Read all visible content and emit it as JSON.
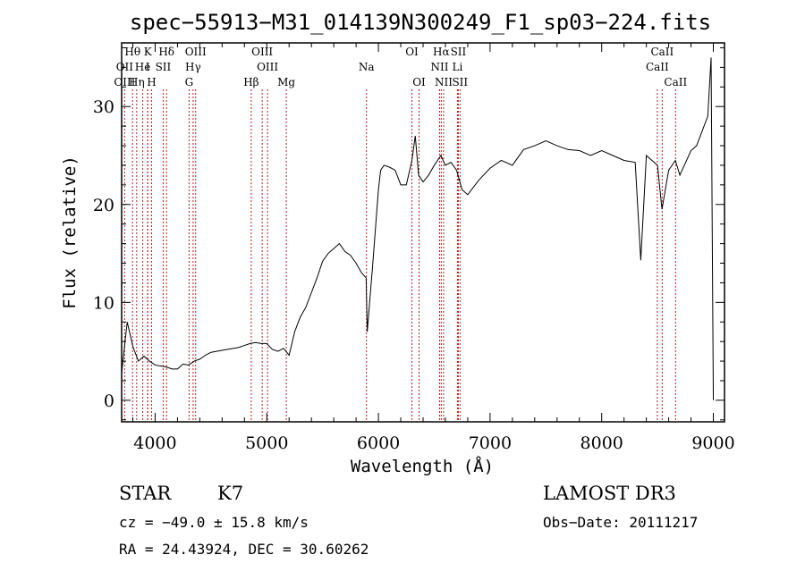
{
  "chart_data": {
    "type": "line",
    "title": "spec−55913−M31_014139N300249_F1_sp03−224.fits",
    "xlabel": "Wavelength (Å)",
    "ylabel": "Flux (relative)",
    "xlim": [
      3700,
      9100
    ],
    "ylim": [
      -2.2,
      36.5
    ],
    "xticks": [
      4000,
      5000,
      6000,
      7000,
      8000,
      9000
    ],
    "yticks": [
      0,
      10,
      20,
      30
    ],
    "series": [
      {
        "x": [
          3700,
          3750,
          3800,
          3850,
          3900,
          3950,
          4000,
          4050,
          4100,
          4150,
          4200,
          4250,
          4300,
          4350,
          4400,
          4450,
          4500,
          4550,
          4600,
          4650,
          4700,
          4750,
          4800,
          4850,
          4900,
          4950,
          5000,
          5050,
          5100,
          5150,
          5200,
          5250,
          5300,
          5350,
          5400,
          5450,
          5500,
          5550,
          5600,
          5650,
          5700,
          5750,
          5800,
          5850,
          5890,
          5900,
          5950,
          6000,
          6020,
          6050,
          6100,
          6150,
          6200,
          6250,
          6300,
          6330,
          6360,
          6400,
          6450,
          6500,
          6560,
          6600,
          6650,
          6700,
          6750,
          6800,
          6900,
          7000,
          7100,
          7200,
          7300,
          7400,
          7500,
          7600,
          7700,
          7800,
          7900,
          8000,
          8100,
          8200,
          8300,
          8350,
          8400,
          8500,
          8540,
          8600,
          8660,
          8700,
          8800,
          8850,
          8900,
          8950,
          8980,
          9000
        ],
        "y": [
          2.8,
          8.0,
          5.5,
          4.0,
          4.5,
          4.0,
          3.6,
          3.5,
          3.4,
          3.2,
          3.2,
          3.7,
          3.6,
          4.0,
          4.2,
          4.6,
          4.9,
          5.0,
          5.1,
          5.2,
          5.3,
          5.4,
          5.6,
          5.8,
          5.9,
          5.8,
          5.8,
          5.2,
          5.0,
          5.3,
          4.6,
          7.0,
          8.5,
          9.5,
          11.0,
          12.5,
          14.2,
          15.0,
          15.5,
          16.0,
          15.2,
          14.8,
          14.0,
          13.0,
          12.5,
          7.0,
          14.0,
          21.5,
          23.5,
          24.0,
          23.8,
          23.5,
          22.0,
          22.0,
          24.5,
          27.0,
          23.0,
          22.3,
          23.0,
          24.0,
          25.0,
          24.0,
          24.3,
          23.5,
          21.5,
          21.0,
          22.5,
          23.7,
          24.5,
          24.0,
          25.6,
          26.0,
          26.5,
          26.0,
          25.6,
          25.5,
          25.0,
          25.5,
          25.0,
          24.5,
          24.3,
          14.3,
          25.0,
          24.0,
          19.5,
          23.5,
          24.5,
          23.0,
          25.5,
          26.0,
          27.5,
          29.0,
          35.0,
          0.0
        ]
      }
    ],
    "line_markers": [
      {
        "label": "Hθ",
        "x": 3798,
        "row": 0
      },
      {
        "label": "OII",
        "x": 3727,
        "row": 1
      },
      {
        "label": "OIII",
        "x": 3727,
        "row": 2
      },
      {
        "label": "Hη",
        "x": 3835,
        "row": 2
      },
      {
        "label": "K",
        "x": 3934,
        "row": 0
      },
      {
        "label": "He",
        "x": 3889,
        "row": 1
      },
      {
        "label": "I",
        "x": 3933,
        "row": 1
      },
      {
        "label": "SII",
        "x": 4072,
        "row": 1
      },
      {
        "label": "H",
        "x": 3968,
        "row": 2
      },
      {
        "label": "Hδ",
        "x": 4102,
        "row": 0
      },
      {
        "label": "OIII",
        "x": 4363,
        "row": 0
      },
      {
        "label": "Hγ",
        "x": 4340,
        "row": 1
      },
      {
        "label": "G",
        "x": 4304,
        "row": 2
      },
      {
        "label": "OIII",
        "x": 4959,
        "row": 0
      },
      {
        "label": "OIII",
        "x": 5007,
        "row": 1
      },
      {
        "label": "Hβ",
        "x": 4861,
        "row": 2
      },
      {
        "label": "Mg",
        "x": 5175,
        "row": 2
      },
      {
        "label": "Na",
        "x": 5893,
        "row": 1
      },
      {
        "label": "OI",
        "x": 6300,
        "row": 0
      },
      {
        "label": "OI",
        "x": 6364,
        "row": 2
      },
      {
        "label": "Hα",
        "x": 6563,
        "row": 0
      },
      {
        "label": "SII",
        "x": 6716,
        "row": 0
      },
      {
        "label": "NII",
        "x": 6548,
        "row": 1
      },
      {
        "label": "Li",
        "x": 6708,
        "row": 1
      },
      {
        "label": "NII",
        "x": 6584,
        "row": 2
      },
      {
        "label": "SII",
        "x": 6731,
        "row": 2
      },
      {
        "label": "CaII",
        "x": 8542,
        "row": 0
      },
      {
        "label": "CaII",
        "x": 8498,
        "row": 1
      },
      {
        "label": "CaII",
        "x": 8662,
        "row": 2
      }
    ],
    "grid": false,
    "legend": "none"
  },
  "info": {
    "class": "STAR",
    "subclass": "K7",
    "survey": "LAMOST DR3",
    "cz": "cz = −49.0 ± 15.8 km/s",
    "obs_date": "Obs−Date: 20111217",
    "radec": "RA =  24.43924, DEC =  30.60262"
  },
  "colors": {
    "line": "#000000",
    "marker": "#b22222",
    "background": "#ffffff"
  }
}
